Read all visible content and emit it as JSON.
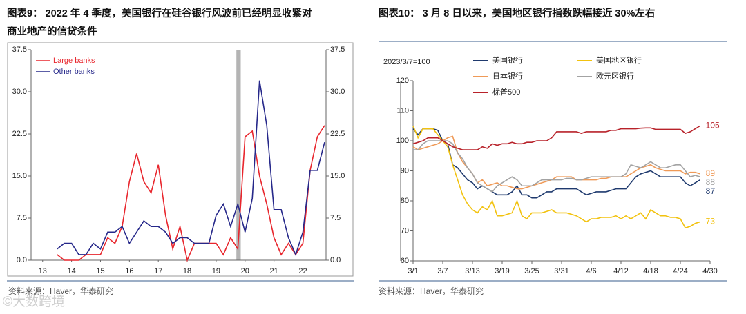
{
  "watermark": "©大数跨境",
  "chart_data": [
    {
      "type": "line",
      "title": [
        "图表9：  2022 年 4 季度，美国银行在硅谷银行风波前已经明显收紧对",
        "商业地产的信贷条件"
      ],
      "source": "资料来源：Haver，华泰研究",
      "x": [
        14,
        14.25,
        14.5,
        14.75,
        15,
        15.25,
        15.5,
        15.75,
        16,
        16.25,
        16.5,
        16.75,
        17,
        17.25,
        17.5,
        17.75,
        18,
        18.25,
        18.5,
        18.75,
        19,
        19.25,
        19.5,
        19.75,
        20,
        20.25,
        20.5,
        20.75,
        21,
        21.25,
        21.5,
        21.75,
        22,
        22.25,
        22.5,
        22.75,
        23,
        23.25
      ],
      "xlim": [
        13.1,
        23.3
      ],
      "xticks": [
        {
          "value": 13.5,
          "label": "13"
        },
        {
          "value": 14.5,
          "label": "14"
        },
        {
          "value": 15.5,
          "label": "15"
        },
        {
          "value": 16.5,
          "label": "16"
        },
        {
          "value": 17.5,
          "label": "17"
        },
        {
          "value": 18.5,
          "label": "18"
        },
        {
          "value": 19.5,
          "label": "19"
        },
        {
          "value": 20.5,
          "label": "20"
        },
        {
          "value": 21.5,
          "label": "21"
        },
        {
          "value": 22.5,
          "label": "22"
        }
      ],
      "ylim": [
        0,
        37.5
      ],
      "yticks": [
        {
          "value": 0,
          "label": "0.0"
        },
        7.5,
        {
          "value": 15,
          "label": "15.0"
        },
        22.5,
        {
          "value": 30,
          "label": "30.0"
        },
        37.5
      ],
      "y2lim": [
        0,
        37.5
      ],
      "y2ticks": [
        {
          "value": 0,
          "label": "0.0"
        },
        7.5,
        {
          "value": 15,
          "label": "15.0"
        },
        22.5,
        {
          "value": 30,
          "label": "30.0"
        },
        37.5
      ],
      "shaded_x": [
        20.2,
        20.35
      ],
      "shade_color": "#b4b4b4",
      "legend": "upper left",
      "series": [
        {
          "name": "Large banks",
          "color": "#e8262d",
          "values": [
            1,
            0,
            0,
            0,
            1,
            1,
            1,
            4,
            3,
            6,
            14,
            19,
            14,
            12,
            17,
            8,
            2,
            6,
            0,
            3,
            3,
            3,
            3,
            1,
            4,
            2,
            22,
            23,
            15,
            10,
            4,
            1,
            3,
            1,
            3,
            16,
            22,
            24
          ]
        },
        {
          "name": "Other banks",
          "color": "#26288a",
          "values": [
            2,
            3,
            3,
            1,
            1,
            3,
            2,
            5,
            5,
            6,
            3,
            5,
            7,
            6,
            6,
            5,
            3,
            4,
            4,
            3,
            3,
            3,
            8,
            10,
            6,
            10,
            5,
            11,
            32,
            24,
            9,
            9,
            4,
            1,
            5,
            16,
            16,
            21
          ]
        }
      ]
    },
    {
      "type": "line",
      "title": "图表10：  3 月 8 日以来，美国地区银行指数跌幅接近 30%左右",
      "subtitle": "2023/3/7=100",
      "source": "资料来源：Haver，华泰研究",
      "categories": [
        "3/1",
        null,
        null,
        null,
        null,
        null,
        "3/7",
        null,
        null,
        null,
        null,
        null,
        "3/13",
        null,
        null,
        null,
        null,
        null,
        "3/19",
        null,
        null,
        null,
        null,
        null,
        "3/25",
        null,
        null,
        null,
        null,
        null,
        "3/31",
        null,
        null,
        null,
        null,
        null,
        "4/6",
        null,
        null,
        null,
        null,
        null,
        "4/12",
        null,
        null,
        null,
        null,
        null,
        "4/18",
        null,
        null,
        null,
        null,
        null,
        "4/24",
        null,
        null,
        null,
        null,
        null,
        "4/30"
      ],
      "ylim": [
        60,
        120
      ],
      "yticks": [
        60,
        70,
        80,
        90,
        100,
        110,
        120
      ],
      "series": [
        {
          "name": "美国银行",
          "color": "#1f3a6e",
          "end_label": 87,
          "values": [
            104,
            102,
            104,
            104,
            104,
            103.5,
            100,
            99,
            92,
            91,
            89,
            87,
            86,
            84,
            85,
            84,
            83,
            82,
            82,
            82,
            83,
            85,
            82,
            82,
            81,
            81,
            82,
            83,
            83,
            84,
            84,
            84,
            84,
            84,
            83,
            82,
            82.5,
            83,
            83,
            83,
            83.5,
            84,
            84,
            84,
            86,
            88,
            89,
            89.5,
            90,
            89,
            88,
            88,
            88,
            88,
            88,
            86,
            85,
            86,
            87,
            null,
            null
          ]
        },
        {
          "name": "美国地区银行",
          "color": "#f2c20f",
          "end_label": 73,
          "values": [
            105,
            101,
            104,
            104,
            104,
            102,
            100,
            98,
            92,
            87,
            82,
            79,
            77,
            76,
            78,
            77,
            80,
            75,
            75,
            75.5,
            76,
            80,
            75,
            74,
            76,
            76,
            76,
            76.5,
            77,
            76,
            76,
            76,
            75.5,
            75,
            74,
            73,
            74,
            74,
            74.5,
            74.5,
            74.5,
            75,
            74,
            75,
            74,
            75,
            76,
            74,
            77,
            76,
            75,
            75,
            74.5,
            74.5,
            74,
            71,
            71.5,
            72.5,
            73,
            null,
            null
          ]
        },
        {
          "name": "日本银行",
          "color": "#ef9a58",
          "end_label": 89,
          "values": [
            98,
            97,
            97.5,
            98,
            98.5,
            99,
            100,
            101,
            101.5,
            96,
            93,
            91,
            89,
            86,
            87,
            85,
            85.5,
            86,
            85,
            85,
            84.5,
            84,
            84,
            84.5,
            85,
            85.5,
            86,
            86.5,
            87,
            88,
            88,
            88,
            88,
            87,
            87,
            87,
            87,
            87,
            87.5,
            87.5,
            88,
            88,
            88,
            88,
            89,
            90,
            91,
            91.5,
            92,
            91,
            90.5,
            90,
            90,
            90,
            90,
            89,
            89.5,
            89.5,
            89,
            null,
            null
          ]
        },
        {
          "name": "欧元区银行",
          "color": "#a3a3a3",
          "end_label": 88,
          "values": [
            97,
            97,
            99,
            100,
            100,
            100,
            100,
            100,
            99,
            96,
            94,
            91,
            89,
            86,
            85,
            84,
            83,
            85,
            86,
            87,
            88,
            87,
            85,
            85,
            85,
            86,
            87,
            87,
            87,
            87,
            87,
            87.5,
            87.5,
            87,
            87,
            87.5,
            88,
            88,
            88,
            88,
            88,
            88,
            88,
            89,
            92,
            91.5,
            91,
            92,
            93,
            92,
            91,
            91,
            91.5,
            92,
            92,
            90,
            88,
            88.5,
            88,
            null,
            null
          ]
        },
        {
          "name": "标普500",
          "color": "#b8222a",
          "end_label": 105,
          "values": [
            99,
            99.5,
            100,
            101,
            101,
            101,
            100,
            99,
            98,
            97.5,
            97,
            97,
            97,
            97,
            98,
            97.5,
            99,
            98.5,
            99,
            99,
            99.5,
            99,
            99,
            99.5,
            99.5,
            100,
            100,
            100,
            101,
            103,
            103,
            103,
            103,
            103,
            102.5,
            103,
            103,
            103,
            103,
            103,
            103.5,
            103.5,
            104,
            104,
            104,
            104,
            104.2,
            104.3,
            104.3,
            103.8,
            103.8,
            103.8,
            103.8,
            103.8,
            103.8,
            102.5,
            103,
            104,
            105,
            null,
            null
          ]
        }
      ]
    }
  ]
}
